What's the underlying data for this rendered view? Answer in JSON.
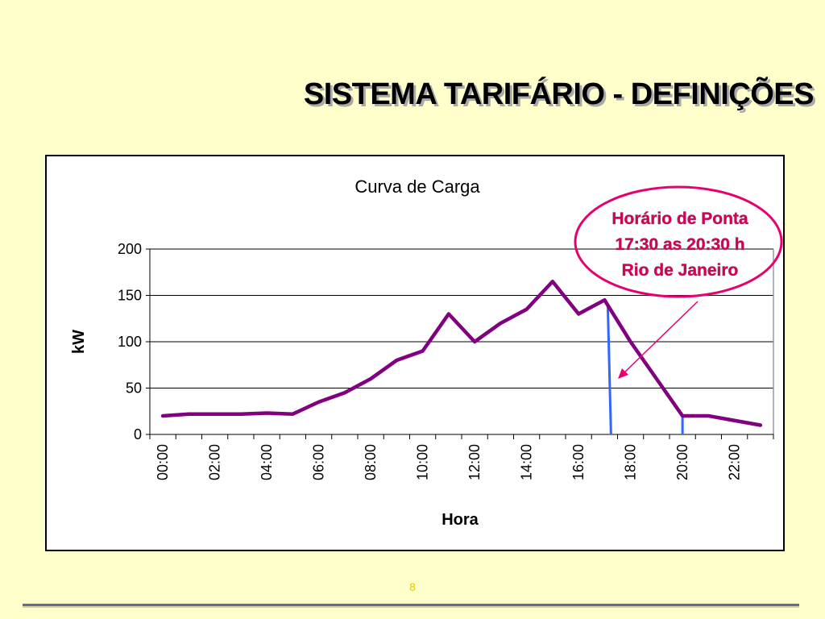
{
  "slide": {
    "title": "SISTEMA TARIFÁRIO - DEFINIÇÕES",
    "page_number": "8"
  },
  "annotation": {
    "lines": [
      "Horário de Ponta",
      "17:30 as 20:30 h",
      "Rio de Janeiro"
    ],
    "ellipse_color": "#e8006e",
    "text_color": "#d4005a",
    "arrow_color": "#e8006e"
  },
  "colors": {
    "line": "#800080",
    "peak_markers": "#3366ff",
    "background": "#ffffcc"
  },
  "chart_data": {
    "type": "line",
    "title": "Curva de Carga",
    "xlabel": "Hora",
    "ylabel": "kW",
    "ylim": [
      0,
      200
    ],
    "yticks": [
      0,
      50,
      100,
      150,
      200
    ],
    "categories": [
      "00:00",
      "01:00",
      "02:00",
      "03:00",
      "04:00",
      "05:00",
      "06:00",
      "07:00",
      "08:00",
      "09:00",
      "10:00",
      "11:00",
      "12:00",
      "13:00",
      "14:00",
      "15:00",
      "16:00",
      "17:00",
      "18:00",
      "19:00",
      "20:00",
      "21:00",
      "22:00",
      "23:00"
    ],
    "tick_labels": [
      "00:00",
      "02:00",
      "04:00",
      "06:00",
      "08:00",
      "10:00",
      "12:00",
      "14:00",
      "16:00",
      "18:00",
      "20:00",
      "22:00"
    ],
    "series": [
      {
        "values": [
          20,
          22,
          22,
          22,
          23,
          22,
          35,
          45,
          60,
          80,
          90,
          130,
          100,
          120,
          135,
          165,
          130,
          145,
          100,
          60,
          20,
          20,
          15,
          10
        ]
      }
    ],
    "peak_window": {
      "start_hour": 17.5,
      "end_hour": 20.5
    },
    "grid": true,
    "legend": "none"
  }
}
